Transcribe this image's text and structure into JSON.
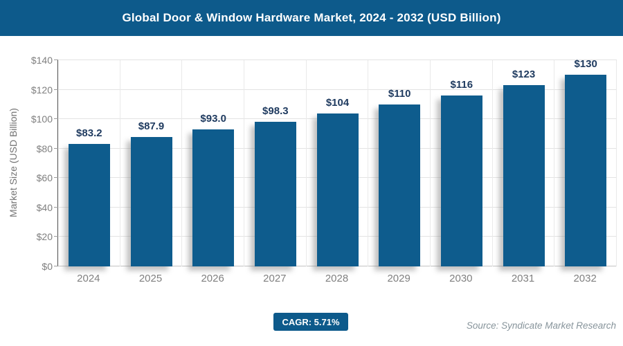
{
  "header": {
    "title": "Global Door & Window Hardware Market, 2024 - 2032 (USD Billion)"
  },
  "chart_data": {
    "type": "bar",
    "title": "Global Door & Window Hardware Market, 2024 - 2032 (USD Billion)",
    "categories": [
      "2024",
      "2025",
      "2026",
      "2027",
      "2028",
      "2029",
      "2030",
      "2031",
      "2032"
    ],
    "values": [
      83.2,
      87.9,
      93.0,
      98.3,
      104,
      110,
      116,
      123,
      130
    ],
    "value_labels": [
      "$83.2",
      "$87.9",
      "$93.0",
      "$98.3",
      "$104",
      "$110",
      "$116",
      "$123",
      "$130"
    ],
    "xlabel": "",
    "ylabel": "Market Size (USD Billion)",
    "ylim": [
      0,
      140
    ],
    "ytick_step": 20,
    "ytick_labels": [
      "$0",
      "$20",
      "$40",
      "$60",
      "$80",
      "$100",
      "$120",
      "$140"
    ],
    "grid": true,
    "legend": "none",
    "bar_color": "#0e5c8d",
    "value_label_color": "#1e3a5f"
  },
  "footer": {
    "cagr_label": "CAGR: 5.71%",
    "source": "Source: Syndicate Market Research"
  },
  "colors": {
    "header_bg": "#0d5a8b",
    "bar": "#0e5c8d",
    "axis_text": "#7f7f7f",
    "gridline": "#e3e3e3"
  }
}
